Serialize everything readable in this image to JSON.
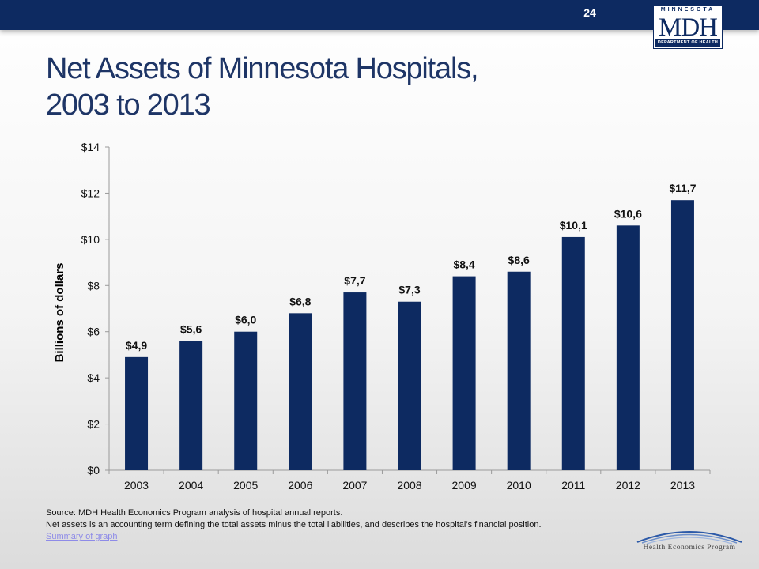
{
  "header": {
    "slide_number": "24",
    "logo_top": "MINNESOTA",
    "logo_main": "MDH",
    "logo_bottom": "DEPARTMENT OF HEALTH"
  },
  "title_line1": "Net Assets of Minnesota Hospitals,",
  "title_line2": "2003 to 2013",
  "chart_data": {
    "type": "bar",
    "categories": [
      "2003",
      "2004",
      "2005",
      "2006",
      "2007",
      "2008",
      "2009",
      "2010",
      "2011",
      "2012",
      "2013"
    ],
    "values": [
      4.9,
      5.6,
      6.0,
      6.8,
      7.7,
      7.3,
      8.4,
      8.6,
      10.1,
      10.6,
      11.7
    ],
    "data_labels": [
      "$4,9",
      "$5,6",
      "$6,0",
      "$6,8",
      "$7,7",
      "$7,3",
      "$8,4",
      "$8,6",
      "$10,1",
      "$10,6",
      "$11,7"
    ],
    "ylabel": "Billions of dollars",
    "ylim": [
      0,
      14
    ],
    "yticks": [
      0,
      2,
      4,
      6,
      8,
      10,
      12,
      14
    ],
    "ytick_labels": [
      "$0",
      "$2",
      "$4",
      "$6",
      "$8",
      "$10",
      "$12",
      "$14"
    ],
    "bar_color": "#0d2a61",
    "grid": false,
    "legend": "none"
  },
  "footer": {
    "source": "Source: MDH Health Economics Program analysis of hospital annual reports.",
    "note": "Net assets is an accounting term defining the total assets minus the total liabilities, and describes the hospital’s financial position.",
    "link": "Summary of graph"
  },
  "program_logo_text": "Health Economics Program"
}
